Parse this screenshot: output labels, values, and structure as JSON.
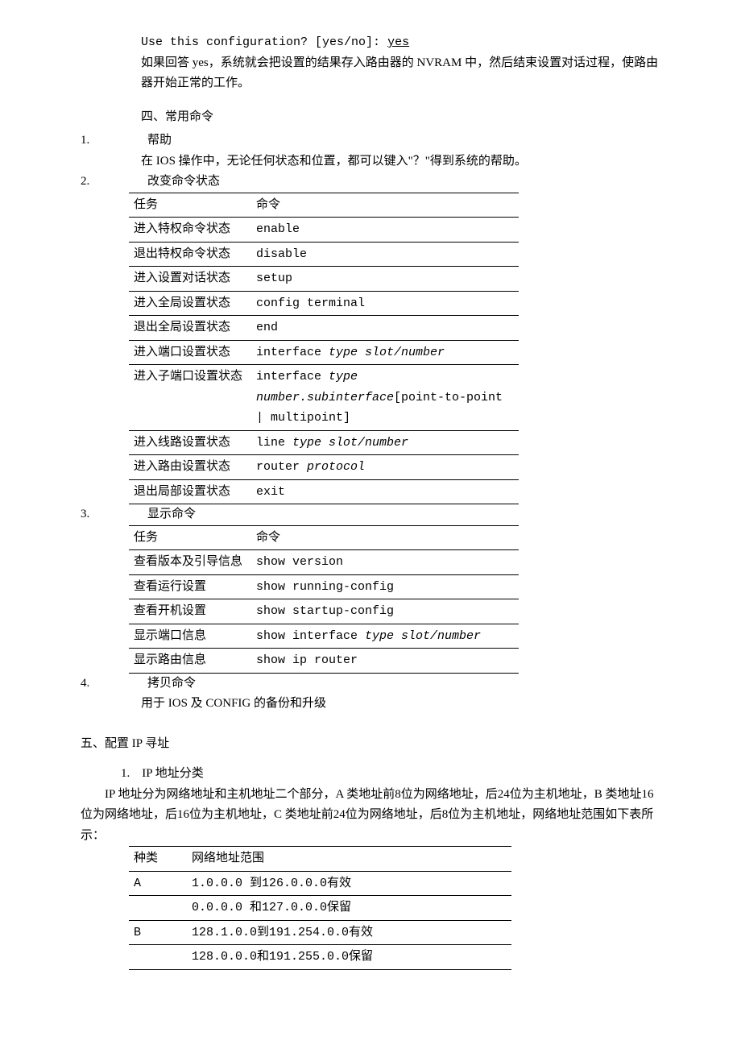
{
  "intro": {
    "prompt_prefix": "Use this configuration? [yes/no]: ",
    "prompt_answer": "yes",
    "explain": "如果回答 yes，系统就会把设置的结果存入路由器的 NVRAM 中，然后结束设置对话过程，使路由器开始正常的工作。"
  },
  "section4": {
    "title": "四、常用命令",
    "items": {
      "i1": {
        "num": "1.",
        "label": "帮助",
        "desc": "在 IOS 操作中，无论任何状态和位置，都可以键入\"？\"得到系统的帮助。"
      },
      "i2": {
        "num": "2.",
        "label": "改变命令状态"
      },
      "i3": {
        "num": "3.",
        "label": "显示命令"
      },
      "i4": {
        "num": "4.",
        "label": "拷贝命令",
        "desc": "用于 IOS 及 CONFIG 的备份和升级"
      }
    },
    "table2_header_task": "任务",
    "table2_header_cmd": "命令",
    "table2": {
      "r0": {
        "task": "进入特权命令状态",
        "cmd": "enable"
      },
      "r1": {
        "task": "退出特权命令状态",
        "cmd": "disable"
      },
      "r2": {
        "task": "进入设置对话状态",
        "cmd": "setup"
      },
      "r3": {
        "task": "进入全局设置状态",
        "cmd": "config terminal"
      },
      "r4": {
        "task": "退出全局设置状态",
        "cmd": "end"
      },
      "r5": {
        "task": "进入端口设置状态",
        "cmd_pre": "interface ",
        "cmd_it": "type slot/number"
      },
      "r6": {
        "task": "进入子端口设置状态",
        "cmd_pre": "interface ",
        "cmd_it1": "type",
        "cmd_it2": "number.subinterface",
        "cmd_post": "[point-to-point | multipoint]"
      },
      "r7": {
        "task": "进入线路设置状态",
        "cmd_pre": "line ",
        "cmd_it": "type slot/number"
      },
      "r8": {
        "task": "进入路由设置状态",
        "cmd_pre": "router ",
        "cmd_it": "protocol"
      },
      "r9": {
        "task": "退出局部设置状态",
        "cmd": "exit"
      }
    },
    "table3_header_task": "任务",
    "table3_header_cmd": "命令",
    "table3": {
      "r0": {
        "task": "查看版本及引导信息",
        "cmd": "show version"
      },
      "r1": {
        "task": "查看运行设置",
        "cmd": "show running-config"
      },
      "r2": {
        "task": "查看开机设置",
        "cmd": "show startup-config"
      },
      "r3": {
        "task": "显示端口信息",
        "cmd_pre": "show interface ",
        "cmd_it": "type slot/number"
      },
      "r4": {
        "task": "显示路由信息",
        "cmd": "show ip router"
      }
    }
  },
  "section5": {
    "title": "五、配置 IP 寻址",
    "sub1_num": "1.",
    "sub1_label": "IP 地址分类",
    "sub1_body": "IP 地址分为网络地址和主机地址二个部分，A 类地址前8位为网络地址，后24位为主机地址，B 类地址16位为网络地址，后16位为主机地址，C 类地址前24位为网络地址，后8位为主机地址，网络地址范围如下表所示：",
    "table_header_type": "种类",
    "table_header_range": "网络地址范围",
    "table": {
      "r0": {
        "type": "A",
        "range": "1.0.0.0 到126.0.0.0有效"
      },
      "r0b": {
        "type": "",
        "range": "0.0.0.0 和127.0.0.0保留"
      },
      "r1": {
        "type": "B",
        "range": "128.1.0.0到191.254.0.0有效"
      },
      "r1b": {
        "type": "",
        "range": "128.0.0.0和191.255.0.0保留"
      }
    }
  }
}
